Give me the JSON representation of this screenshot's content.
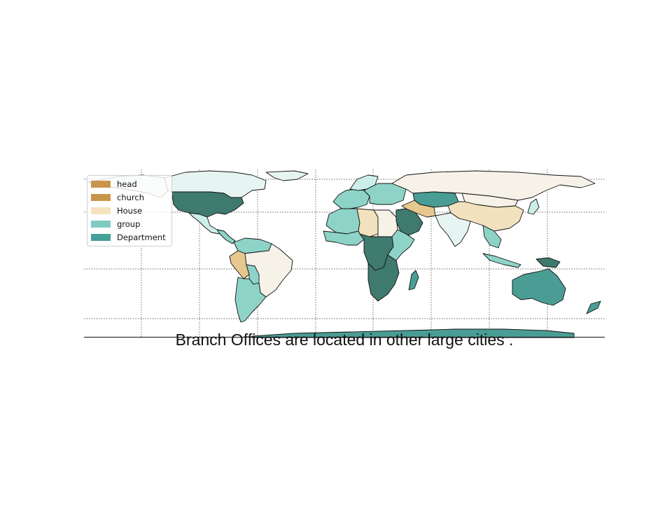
{
  "title": "Branch Offices are located in other large cities .",
  "colors": {
    "ocean": "#ffffff",
    "border": "#111111",
    "grid": "#333333",
    "dark_teal": "#3f7a6e",
    "teal": "#4a9d95",
    "light_teal": "#8ed3c8",
    "pale_teal": "#cdeee8",
    "mint": "#e7f5f2",
    "cream": "#f6f2e8",
    "wheat": "#f2e1bd",
    "tan": "#e6c88f"
  },
  "legend": [
    {
      "label": "head",
      "color": "#c8964a"
    },
    {
      "label": "church",
      "color": "#c8964a"
    },
    {
      "label": "House",
      "color": "#f5e2bf"
    },
    {
      "label": "group",
      "color": "#7fcbbf"
    },
    {
      "label": "Department",
      "color": "#45a097"
    }
  ],
  "regions": [
    {
      "name": "usa",
      "fill": "dark_teal"
    },
    {
      "name": "canada",
      "fill": "mint"
    },
    {
      "name": "alaska",
      "fill": "mint"
    },
    {
      "name": "greenland",
      "fill": "mint"
    },
    {
      "name": "mexico",
      "fill": "pale_teal"
    },
    {
      "name": "central-america",
      "fill": "light_teal"
    },
    {
      "name": "colombia-venezuela",
      "fill": "light_teal"
    },
    {
      "name": "brazil",
      "fill": "cream"
    },
    {
      "name": "peru",
      "fill": "tan"
    },
    {
      "name": "bolivia",
      "fill": "light_teal"
    },
    {
      "name": "argentina-chile",
      "fill": "light_teal"
    },
    {
      "name": "western-europe",
      "fill": "light_teal"
    },
    {
      "name": "scandinavia",
      "fill": "pale_teal"
    },
    {
      "name": "eastern-europe",
      "fill": "light_teal"
    },
    {
      "name": "russia",
      "fill": "cream"
    },
    {
      "name": "kazakhstan",
      "fill": "teal"
    },
    {
      "name": "north-africa-west",
      "fill": "light_teal"
    },
    {
      "name": "north-africa-mid",
      "fill": "wheat"
    },
    {
      "name": "north-africa-east",
      "fill": "cream"
    },
    {
      "name": "arabia",
      "fill": "dark_teal"
    },
    {
      "name": "iran",
      "fill": "tan"
    },
    {
      "name": "west-africa",
      "fill": "light_teal"
    },
    {
      "name": "central-africa",
      "fill": "dark_teal"
    },
    {
      "name": "east-africa",
      "fill": "light_teal"
    },
    {
      "name": "southern-africa",
      "fill": "dark_teal"
    },
    {
      "name": "madagascar",
      "fill": "teal"
    },
    {
      "name": "india",
      "fill": "mint"
    },
    {
      "name": "china",
      "fill": "wheat"
    },
    {
      "name": "mongolia",
      "fill": "cream"
    },
    {
      "name": "southeast-asia",
      "fill": "light_teal"
    },
    {
      "name": "indonesia",
      "fill": "light_teal"
    },
    {
      "name": "new-guinea",
      "fill": "dark_teal"
    },
    {
      "name": "australia",
      "fill": "teal"
    },
    {
      "name": "new-zealand",
      "fill": "teal"
    },
    {
      "name": "japan",
      "fill": "pale_teal"
    },
    {
      "name": "antarctica",
      "fill": "teal"
    }
  ]
}
